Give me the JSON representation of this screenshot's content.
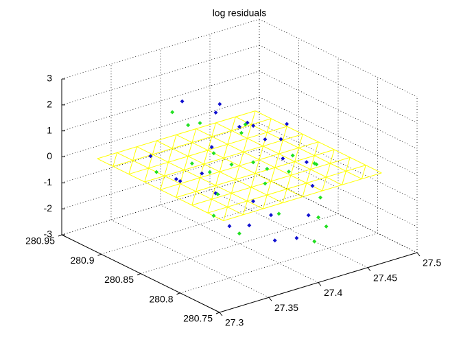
{
  "chart_data": {
    "type": "scatter3d",
    "title": "log residuals",
    "xlim": [
      27.3,
      27.5
    ],
    "xticks": [
      27.3,
      27.35,
      27.4,
      27.45,
      27.5
    ],
    "ylim": [
      280.75,
      280.95
    ],
    "yticks": [
      280.75,
      280.8,
      280.85,
      280.9,
      280.95
    ],
    "zlim": [
      -3,
      3
    ],
    "zticks": [
      -3,
      -2,
      -1,
      0,
      1,
      2,
      3
    ],
    "grid": true,
    "surface": {
      "color": "#ffff00",
      "z": 0,
      "xlim": [
        27.32,
        27.48
      ],
      "ylim": [
        280.77,
        280.93
      ],
      "divisions": 8
    },
    "series": [
      {
        "color": "#1010d0",
        "x": [
          27.35,
          27.36,
          27.38,
          27.4,
          27.41,
          27.42,
          27.43,
          27.44,
          27.45,
          27.37,
          27.39,
          27.34,
          27.36,
          27.4,
          27.42,
          27.44,
          27.38,
          27.41,
          27.43,
          27.35,
          27.39,
          27.46,
          27.37,
          27.4,
          27.45
        ],
        "y": [
          280.9,
          280.88,
          280.86,
          280.85,
          280.83,
          280.82,
          280.8,
          280.84,
          280.86,
          280.8,
          280.82,
          280.85,
          280.83,
          280.88,
          280.9,
          280.89,
          280.78,
          280.79,
          280.87,
          280.8,
          280.91,
          280.84,
          280.86,
          280.81,
          280.82
        ],
        "z": [
          0.2,
          -0.5,
          0.8,
          1.5,
          1.2,
          0.5,
          -1.5,
          1.3,
          0.3,
          -1.2,
          -0.8,
          0.1,
          -0.3,
          1.6,
          1.4,
          0.6,
          -1.6,
          -2.0,
          0.9,
          -1.0,
          1.7,
          -0.4,
          -0.1,
          -1.3,
          -0.9
        ]
      },
      {
        "color": "#22e022",
        "x": [
          27.34,
          27.36,
          27.37,
          27.39,
          27.4,
          27.41,
          27.42,
          27.43,
          27.44,
          27.45,
          27.46,
          27.35,
          27.38,
          27.4,
          27.42,
          27.36,
          27.39,
          27.41,
          27.43,
          27.44,
          27.37,
          27.45,
          27.38,
          27.47,
          27.4
        ],
        "y": [
          280.88,
          280.86,
          280.84,
          280.82,
          280.8,
          280.86,
          280.84,
          280.82,
          280.8,
          280.85,
          280.83,
          280.82,
          280.89,
          280.9,
          280.78,
          280.8,
          280.87,
          280.83,
          280.88,
          280.79,
          280.85,
          280.81,
          280.91,
          280.84,
          280.86
        ],
        "z": [
          0.0,
          0.4,
          -0.6,
          0.7,
          -1.1,
          1.0,
          -0.2,
          0.5,
          -1.7,
          -0.8,
          -0.3,
          -0.9,
          1.2,
          0.9,
          -2.1,
          -1.4,
          0.3,
          -0.5,
          0.8,
          -1.9,
          0.1,
          -1.2,
          1.4,
          -0.6,
          -0.1
        ]
      }
    ]
  }
}
